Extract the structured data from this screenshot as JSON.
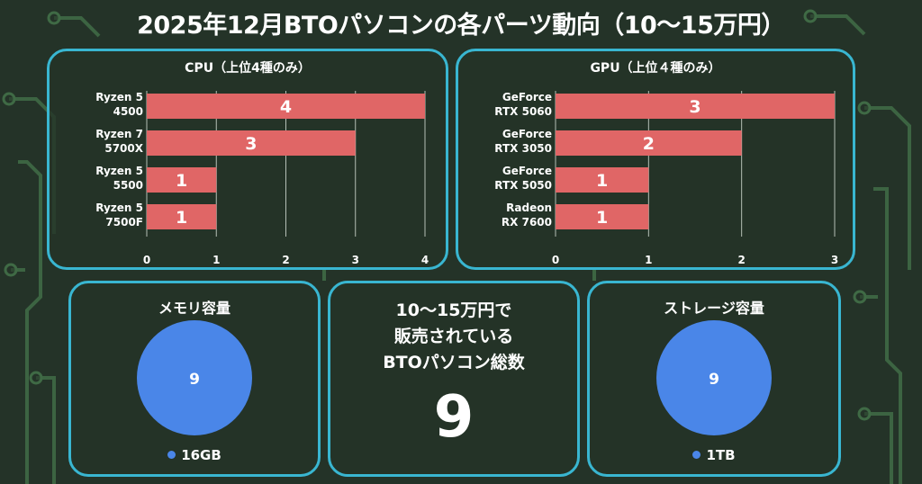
{
  "page_title": "2025年12月BTOパソコンの各パーツ動向（10〜15万円）",
  "colors": {
    "bar": "#e06666",
    "pie": "#4a86e8",
    "frame": "#39b6d1",
    "background": "#243328"
  },
  "cpu_panel": {
    "title": "CPU（上位4種のみ）"
  },
  "gpu_panel": {
    "title": "GPU（上位４種のみ）"
  },
  "memory_panel": {
    "title": "メモリ容量",
    "legend": "16GB",
    "value_label": "9"
  },
  "storage_panel": {
    "title": "ストレージ容量",
    "legend": "1TB",
    "value_label": "9"
  },
  "total_panel": {
    "label": "10〜15万円で\n販売されている\nBTOパソコン総数",
    "value": "9"
  },
  "chart_data": [
    {
      "type": "bar",
      "orientation": "horizontal",
      "title": "CPU（上位4種のみ）",
      "categories": [
        [
          "Ryzen 5",
          "4500"
        ],
        [
          "Ryzen 7",
          "5700X"
        ],
        [
          "Ryzen 5",
          "5500"
        ],
        [
          "Ryzen 5",
          "7500F"
        ]
      ],
      "values": [
        4,
        3,
        1,
        1
      ],
      "xlim": [
        0,
        4
      ],
      "xticks": [
        0,
        1,
        2,
        3,
        4
      ],
      "grid": true,
      "data_labels": true
    },
    {
      "type": "bar",
      "orientation": "horizontal",
      "title": "GPU（上位４種のみ）",
      "categories": [
        [
          "GeForce",
          "RTX 5060"
        ],
        [
          "GeForce",
          "RTX 3050"
        ],
        [
          "GeForce",
          "RTX 5050"
        ],
        [
          "Radeon",
          "RX 7600"
        ]
      ],
      "values": [
        3,
        2,
        1,
        1
      ],
      "xlim": [
        0,
        3
      ],
      "xticks": [
        0,
        1,
        2,
        3
      ],
      "grid": true,
      "data_labels": true
    },
    {
      "type": "pie",
      "title": "メモリ容量",
      "categories": [
        "16GB"
      ],
      "values": [
        9
      ],
      "legend": "bottom"
    },
    {
      "type": "pie",
      "title": "ストレージ容量",
      "categories": [
        "1TB"
      ],
      "values": [
        9
      ],
      "legend": "bottom"
    }
  ]
}
